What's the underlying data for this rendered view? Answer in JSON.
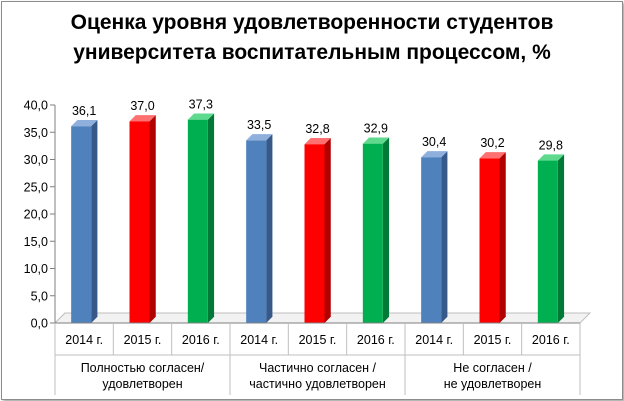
{
  "chart_data": {
    "type": "bar",
    "title_lines": [
      "Оценка уровня удовлетворенности студентов",
      "университета воспитательным процессом, %"
    ],
    "years": [
      "2014 г.",
      "2015 г.",
      "2016 г."
    ],
    "groups": [
      {
        "label_lines": [
          "Полностью согласен/",
          "удовлетворен"
        ],
        "values": [
          36.1,
          37.0,
          37.3
        ]
      },
      {
        "label_lines": [
          "Частично согласен /",
          "частично удовлетворен"
        ],
        "values": [
          33.5,
          32.8,
          32.9
        ]
      },
      {
        "label_lines": [
          "Не согласен /",
          "не удовлетворен"
        ],
        "values": [
          30.4,
          30.2,
          29.8
        ]
      }
    ],
    "value_labels": [
      [
        "36,1",
        "37,0",
        "37,3"
      ],
      [
        "33,5",
        "32,8",
        "32,9"
      ],
      [
        "30,4",
        "30,2",
        "29,8"
      ]
    ],
    "y_ticks": [
      0,
      5,
      10,
      15,
      20,
      25,
      30,
      35,
      40
    ],
    "y_tick_labels": [
      "0,0",
      "5,0",
      "10,0",
      "15,0",
      "20,0",
      "25,0",
      "30,0",
      "35,0",
      "40,0"
    ],
    "ylim": [
      0,
      40
    ],
    "grid": false,
    "year_colors": [
      "#4f81bd",
      "#ff0000",
      "#00b050"
    ],
    "year_side_colors": [
      "#36598a",
      "#b00000",
      "#007a36"
    ],
    "year_top_colors": [
      "#8fb0dc",
      "#ff7070",
      "#5fd98e"
    ]
  }
}
